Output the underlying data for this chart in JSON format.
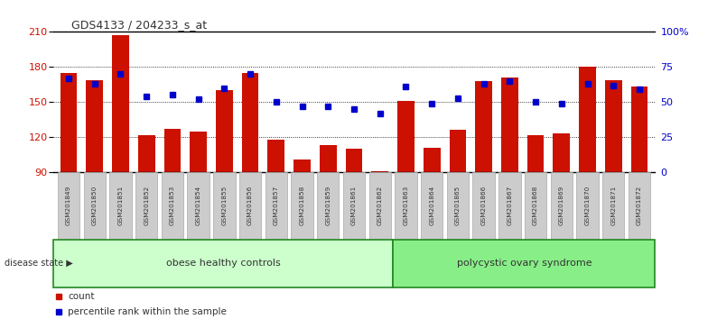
{
  "title": "GDS4133 / 204233_s_at",
  "samples": [
    "GSM201849",
    "GSM201850",
    "GSM201851",
    "GSM201852",
    "GSM201853",
    "GSM201854",
    "GSM201855",
    "GSM201856",
    "GSM201857",
    "GSM201858",
    "GSM201859",
    "GSM201861",
    "GSM201862",
    "GSM201863",
    "GSM201864",
    "GSM201865",
    "GSM201866",
    "GSM201867",
    "GSM201868",
    "GSM201869",
    "GSM201870",
    "GSM201871",
    "GSM201872"
  ],
  "counts": [
    175,
    169,
    207,
    122,
    127,
    125,
    160,
    175,
    118,
    101,
    113,
    110,
    91,
    151,
    111,
    126,
    168,
    171,
    122,
    123,
    180,
    169,
    163
  ],
  "percentiles": [
    67,
    63,
    70,
    54,
    55,
    52,
    60,
    70,
    50,
    47,
    47,
    45,
    42,
    61,
    49,
    53,
    63,
    65,
    50,
    49,
    63,
    62,
    59
  ],
  "group_labels": [
    "obese healthy controls",
    "polycystic ovary syndrome"
  ],
  "group_sizes": [
    13,
    10
  ],
  "group_colors_light": [
    "#ccffcc",
    "#88ee88"
  ],
  "group_edge_color": "#228822",
  "bar_color": "#cc1100",
  "dot_color": "#0000cc",
  "ylim_left": [
    90,
    210
  ],
  "ylim_right": [
    0,
    100
  ],
  "yticks_left": [
    90,
    120,
    150,
    180,
    210
  ],
  "yticks_right": [
    0,
    25,
    50,
    75,
    100
  ],
  "yticklabels_right": [
    "0",
    "25",
    "50",
    "75",
    "100%"
  ],
  "bg_color": "#ffffff",
  "plot_bg_color": "#ffffff",
  "xtick_box_color": "#cccccc",
  "grid_color": "#000000",
  "disease_state_label": "disease state",
  "legend_count": "count",
  "legend_pct": "percentile rank within the sample"
}
